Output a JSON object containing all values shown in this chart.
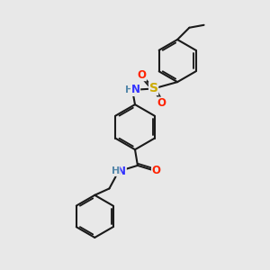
{
  "bg_color": "#e8e8e8",
  "bond_color": "#1a1a1a",
  "bond_width": 1.5,
  "atom_colors": {
    "N": "#3333ff",
    "O": "#ff2200",
    "S": "#ccaa00",
    "H_label": "#5588aa",
    "C": "#1a1a1a"
  },
  "font_size": 8.5,
  "font_size_h": 8.0
}
